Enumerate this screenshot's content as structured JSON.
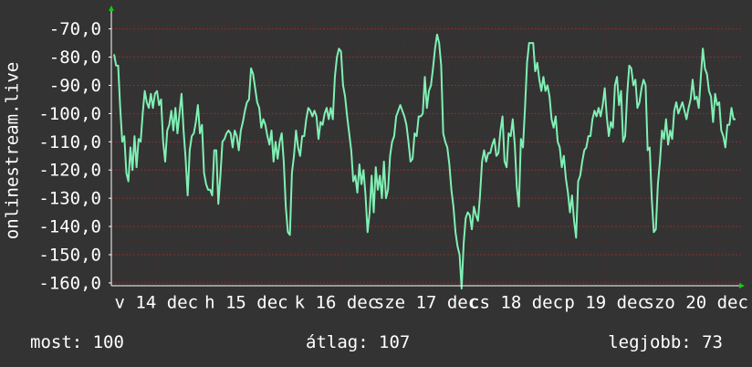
{
  "chart_data": {
    "type": "line",
    "ylabel": "onlinestream.live",
    "ylim": [
      -161,
      -63
    ],
    "yticks": [
      {
        "value": -70,
        "label": "-70,0"
      },
      {
        "value": -80,
        "label": "-80,0"
      },
      {
        "value": -90,
        "label": "-90,0"
      },
      {
        "value": -100,
        "label": "-100,0"
      },
      {
        "value": -110,
        "label": "-110,0"
      },
      {
        "value": -120,
        "label": "-120,0"
      },
      {
        "value": -130,
        "label": "-130,0"
      },
      {
        "value": -140,
        "label": "-140,0"
      },
      {
        "value": -150,
        "label": "-150,0"
      },
      {
        "value": -160,
        "label": "-160,0"
      }
    ],
    "xlim": [
      0,
      7
    ],
    "xticks": [
      {
        "value": 0.5,
        "label": "v 14 dec"
      },
      {
        "value": 1.5,
        "label": "h 15 dec"
      },
      {
        "value": 2.5,
        "label": "k 16 dec"
      },
      {
        "value": 3.5,
        "label": "sze 17 dec"
      },
      {
        "value": 4.5,
        "label": "cs 18 dec"
      },
      {
        "value": 5.5,
        "label": "p 19 dec"
      },
      {
        "value": 6.5,
        "label": "szo 20 dec"
      }
    ],
    "grid": true,
    "series": [
      {
        "color": "#7ff0b4",
        "values": [
          -79,
          -83,
          -83,
          -98,
          -110,
          -108,
          -121,
          -124,
          -112,
          -120,
          -108,
          -119,
          -109,
          -110,
          -100,
          -92,
          -96,
          -98,
          -93,
          -98,
          -93,
          -92,
          -97,
          -95,
          -110,
          -117,
          -106,
          -104,
          -99,
          -106,
          -98,
          -107,
          -100,
          -93,
          -106,
          -116,
          -129,
          -113,
          -108,
          -107,
          -103,
          -97,
          -107,
          -104,
          -121,
          -125,
          -127,
          -127,
          -129,
          -113,
          -113,
          -132,
          -122,
          -110,
          -109,
          -107,
          -106,
          -107,
          -112,
          -106,
          -108,
          -113,
          -106,
          -103,
          -99,
          -96,
          -95,
          -84,
          -86,
          -91,
          -96,
          -98,
          -105,
          -102,
          -104,
          -108,
          -111,
          -106,
          -117,
          -110,
          -116,
          -110,
          -107,
          -117,
          -133,
          -142,
          -143,
          -121,
          -115,
          -106,
          -112,
          -115,
          -108,
          -108,
          -102,
          -98,
          -99,
          -101,
          -99,
          -101,
          -109,
          -103,
          -104,
          -100,
          -98,
          -102,
          -98,
          -102,
          -87,
          -80,
          -77,
          -78,
          -90,
          -94,
          -101,
          -107,
          -113,
          -124,
          -122,
          -128,
          -118,
          -125,
          -120,
          -129,
          -142,
          -135,
          -122,
          -135,
          -119,
          -127,
          -122,
          -130,
          -117,
          -130,
          -127,
          -115,
          -110,
          -108,
          -101,
          -99,
          -97,
          -99,
          -101,
          -104,
          -110,
          -117,
          -116,
          -107,
          -108,
          -101,
          -101,
          -100,
          -87,
          -98,
          -92,
          -90,
          -84,
          -77,
          -72,
          -75,
          -83,
          -107,
          -110,
          -112,
          -118,
          -127,
          -133,
          -142,
          -147,
          -150,
          -162,
          -146,
          -137,
          -135,
          -136,
          -141,
          -133,
          -136,
          -138,
          -129,
          -117,
          -113,
          -117,
          -114,
          -114,
          -111,
          -109,
          -115,
          -114,
          -106,
          -101,
          -117,
          -119,
          -107,
          -108,
          -102,
          -111,
          -126,
          -133,
          -109,
          -112,
          -98,
          -82,
          -75,
          -75,
          -75,
          -85,
          -82,
          -88,
          -92,
          -87,
          -92,
          -90,
          -94,
          -102,
          -105,
          -101,
          -110,
          -112,
          -119,
          -115,
          -123,
          -128,
          -135,
          -129,
          -138,
          -144,
          -124,
          -122,
          -117,
          -113,
          -112,
          -108,
          -108,
          -102,
          -99,
          -101,
          -98,
          -101,
          -97,
          -91,
          -101,
          -108,
          -103,
          -105,
          -90,
          -87,
          -97,
          -92,
          -110,
          -108,
          -93,
          -83,
          -84,
          -90,
          -88,
          -98,
          -96,
          -91,
          -88,
          -90,
          -113,
          -112,
          -130,
          -142,
          -141,
          -125,
          -117,
          -106,
          -109,
          -102,
          -111,
          -106,
          -109,
          -99,
          -96,
          -100,
          -98,
          -96,
          -99,
          -102,
          -98,
          -95,
          -88,
          -95,
          -94,
          -98,
          -87,
          -77,
          -84,
          -86,
          -92,
          -94,
          -103,
          -93,
          -97,
          -96,
          -106,
          -108,
          -112,
          -104,
          -104,
          -98,
          -102,
          -102
        ]
      }
    ],
    "stats": [
      {
        "label": "most:",
        "value": 100
      },
      {
        "label": "átlag:",
        "value": 107
      },
      {
        "label": "legjobb:",
        "value": 73
      }
    ]
  }
}
